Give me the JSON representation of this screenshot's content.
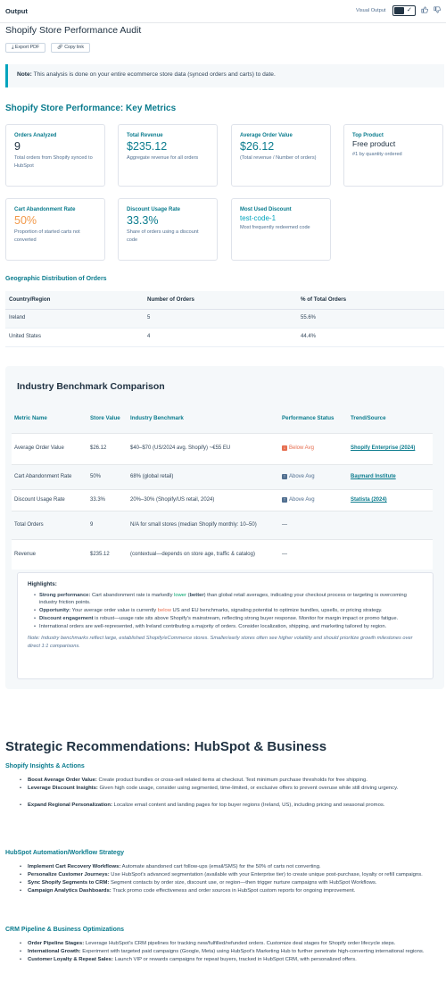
{
  "topbar": {
    "label": "Output",
    "visual_output": "Visual Output",
    "check": "✓",
    "thumbs_up_icon": "thumbs-up-icon",
    "thumbs_down_icon": "thumbs-down-icon"
  },
  "title": "Shopify Store Performance Audit",
  "actions": {
    "export_pdf": "Export PDF",
    "copy_link": "Copy link"
  },
  "note": {
    "bold": "Note:",
    "text": " This analysis is done on your entire ecommerce store data (synced orders and carts) to date."
  },
  "metrics": {
    "heading": "Shopify Store Performance: Key Metrics",
    "cards": [
      {
        "label": "Orders Analyzed",
        "value": "9",
        "sub": "Total orders from Shopify synced to HubSpot"
      },
      {
        "label": "Total Revenue",
        "value": "$235.12",
        "sub": "Aggregate revenue for all orders"
      },
      {
        "label": "Average Order Value",
        "value": "$26.12",
        "sub": "(Total revenue / Number of orders)"
      },
      {
        "label": "Top Product",
        "value": "Free product",
        "sub": "#1 by quantity ordered"
      },
      {
        "label": "Cart Abandonment Rate",
        "value": "50%",
        "sub": "Proportion of started carts not converted"
      },
      {
        "label": "Discount Usage Rate",
        "value": "33.3%",
        "sub": "Share of orders using a discount code"
      },
      {
        "label": "Most Used Discount",
        "value": "test-code-1",
        "sub": "Most frequently redeemed code"
      }
    ]
  },
  "geo": {
    "heading": "Geographic Distribution of Orders",
    "columns": [
      "Country/Region",
      "Number of Orders",
      "% of Total Orders"
    ],
    "rows": [
      [
        "Ireland",
        "5",
        "55.6%"
      ],
      [
        "United States",
        "4",
        "44.4%"
      ]
    ]
  },
  "benchmark": {
    "heading": "Industry Benchmark Comparison",
    "columns": [
      "Metric Name",
      "Store Value",
      "Industry Benchmark",
      "Performance Status",
      "Trend/Source"
    ],
    "rows": [
      {
        "metric": "Average Order Value",
        "value": "$26.12",
        "bench": "$40–$70 (US/2024 avg. Shopify) ~€55 EU",
        "status": "Below Avg",
        "status_type": "below",
        "source": "Shopify Enterprise (2024)"
      },
      {
        "metric": "Cart Abandonment Rate",
        "value": "50%",
        "bench": "68% (global retail)",
        "status": "Above Avg",
        "status_type": "above",
        "source": "Baymard Institute"
      },
      {
        "metric": "Discount Usage Rate",
        "value": "33.3%",
        "bench": "20%–30% (Shopify/US retail, 2024)",
        "status": "Above Avg",
        "status_type": "above",
        "source": "Statista (2024)"
      },
      {
        "metric": "Total Orders",
        "value": "9",
        "bench": "N/A for small stores (median Shopify monthly: 10–50)",
        "status": "—",
        "status_type": "none",
        "source": ""
      },
      {
        "metric": "Revenue",
        "value": "$235.12",
        "bench": "(contextual—depends on store age, traffic & catalog)",
        "status": "—",
        "status_type": "none",
        "source": ""
      }
    ],
    "highlights": {
      "heading": "Highlights:",
      "items": [
        {
          "bold": "Strong performance:",
          "pre": " Cart abandonment rate is markedly ",
          "mark": "lower",
          "markclass": "green",
          "mid": " (",
          "bold2": "better",
          "post": ") than global retail averages, indicating your checkout process or targeting is overcoming industry friction points."
        },
        {
          "bold": "Opportunity:",
          "pre": " Your average order value is currently ",
          "mark": "below",
          "markclass": "red",
          "mid": "",
          "bold2": "",
          "post": " US and EU benchmarks, signaling potential to optimize bundles, upsells, or pricing strategy."
        },
        {
          "bold": "Discount engagement",
          "pre": " is robust—usage rate sits above Shopify's mainstream, reflecting strong buyer response. Monitor for margin impact or promo fatigue.",
          "mark": "",
          "markclass": "",
          "mid": "",
          "bold2": "",
          "post": ""
        },
        {
          "bold": "",
          "pre": "International orders are well-represented, with Ireland contributing a majority of orders. Consider localization, shipping, and marketing tailored by region.",
          "mark": "",
          "markclass": "",
          "mid": "",
          "bold2": "",
          "post": ""
        }
      ],
      "footnote": "Note: Industry benchmarks reflect large, established Shopify/eCommerce stores. Smaller/early stores often see higher volatility and should prioritize growth milestones over direct 1:1 comparisons."
    }
  },
  "recs": {
    "heading": "Strategic Recommendations: HubSpot & Business",
    "sections": [
      {
        "heading": "Shopify Insights & Actions",
        "items": [
          {
            "bold": "Boost Average Order Value:",
            "text": " Create product bundles or cross-sell related items at checkout. Test minimum purchase thresholds for free shipping."
          },
          {
            "bold": "Leverage Discount Insights:",
            "text": " Given high code usage, consider using segmented, time-limited, or exclusive offers to prevent overuse while still driving urgency."
          },
          {
            "bold": "Expand Regional Personalization:",
            "text": " Localize email content and landing pages for top buyer regions (Ireland, US), including pricing and seasonal promos."
          }
        ]
      },
      {
        "heading": "HubSpot Automation/Workflow Strategy",
        "items": [
          {
            "bold": "Implement Cart Recovery Workflows:",
            "text": " Automate abandoned cart follow-ups (email/SMS) for the 50% of carts not converting."
          },
          {
            "bold": "Personalize Customer Journeys:",
            "text": " Use HubSpot's advanced segmentation (available with your Enterprise tier) to create unique post-purchase, loyalty or refill campaigns."
          },
          {
            "bold": "Sync Shopify Segments to CRM:",
            "text": " Segment contacts by order size, discount use, or region—then trigger nurture campaigns with HubSpot Workflows."
          },
          {
            "bold": "Campaign Analytics Dashboards:",
            "text": " Track promo code effectiveness and order sources in HubSpot custom reports for ongoing improvement."
          }
        ]
      },
      {
        "heading": "CRM Pipeline & Business Optimizations",
        "items": [
          {
            "bold": "Order Pipeline Stages:",
            "text": " Leverage HubSpot's CRM pipelines for tracking new/fulfilled/refunded orders. Customize deal stages for Shopify order lifecycle steps."
          },
          {
            "bold": "International Growth:",
            "text": " Experiment with targeted paid campaigns (Google, Meta) using HubSpot's Marketing Hub to further penetrate high-converting international regions."
          },
          {
            "bold": "Customer Loyalty & Repeat Sales:",
            "text": " Launch VIP or rewards campaigns for repeat buyers, tracked in HubSpot CRM, with personalized offers."
          }
        ]
      }
    ]
  }
}
